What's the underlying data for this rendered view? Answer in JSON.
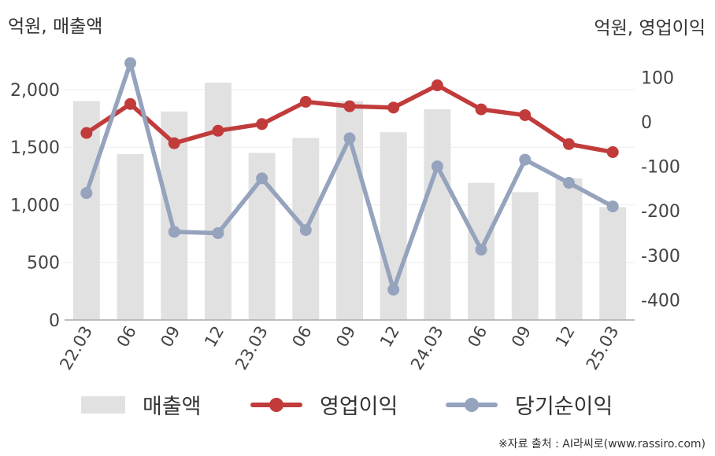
{
  "units": {
    "left": "억원, 매출액",
    "right": "억원, 영업이익"
  },
  "colors": {
    "revenue": "#e1e1e1",
    "operating_profit": "#c23b3b",
    "net_income": "#95a3bd"
  },
  "legend": [
    {
      "key": "revenue",
      "label": "매출액",
      "marker": "bar"
    },
    {
      "key": "operating_profit",
      "label": "영업이익",
      "marker": "line"
    },
    {
      "key": "net_income",
      "label": "당기순이익",
      "marker": "line"
    }
  ],
  "source": "※자료 출처 : AI라씨로(www.rassiro.com)",
  "chart_data": {
    "type": "bar",
    "categories": [
      "22.03",
      "06",
      "09",
      "12",
      "23.03",
      "06",
      "09",
      "12",
      "24.03",
      "06",
      "09",
      "12",
      "25.03"
    ],
    "y_left": {
      "ylim": [
        0,
        2300
      ],
      "ticks": [
        0,
        500,
        1000,
        1500,
        2000
      ],
      "tick_labels": [
        "0",
        "500",
        "1,000",
        "1,500",
        "2,000"
      ]
    },
    "y_right": {
      "ylim": [
        -445,
        150
      ],
      "ticks": [
        -400,
        -300,
        -200,
        -100,
        0,
        100
      ],
      "tick_labels": [
        "-400",
        "-300",
        "-200",
        "-100",
        "0",
        "100"
      ]
    },
    "series": [
      {
        "name": "매출액",
        "type": "bar",
        "axis": "left",
        "values": [
          1900,
          1440,
          1810,
          2060,
          1450,
          1580,
          1900,
          1630,
          1830,
          1190,
          1110,
          1230,
          980
        ]
      },
      {
        "name": "영업이익",
        "type": "line",
        "axis": "right",
        "values": [
          -25,
          40,
          -48,
          -20,
          -5,
          45,
          35,
          32,
          82,
          28,
          15,
          -50,
          -68
        ]
      },
      {
        "name": "당기순이익",
        "type": "line",
        "axis": "right",
        "values": [
          -160,
          132,
          -247,
          -250,
          -127,
          -243,
          -37,
          -377,
          -100,
          -287,
          -85,
          -137,
          -190
        ]
      }
    ],
    "grid": true
  }
}
